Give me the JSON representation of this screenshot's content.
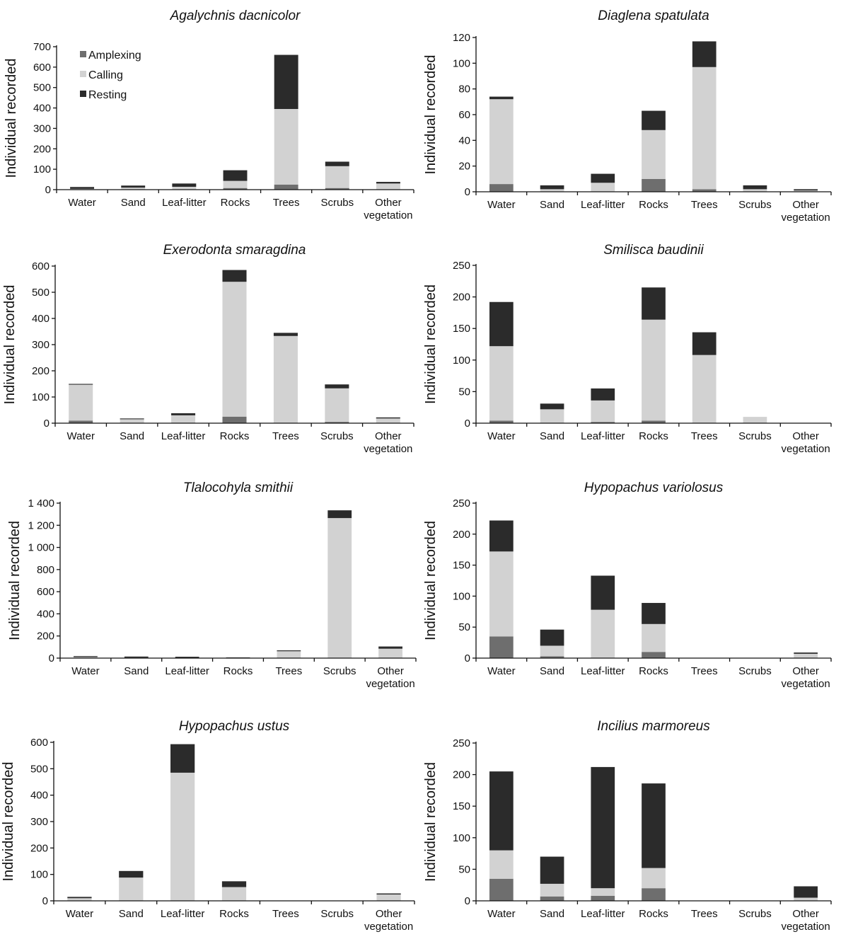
{
  "colors": {
    "amplexing": "#6e6e6e",
    "calling": "#d2d2d2",
    "resting": "#2b2b2b",
    "axis": "#111111"
  },
  "chart_data": [
    {
      "type": "bar",
      "stacked": true,
      "title": "Agalychnis dacnicolor",
      "xlabel": "",
      "ylabel": "Individual recorded",
      "ylim": [
        0,
        700
      ],
      "yticks": [
        0,
        100,
        200,
        300,
        400,
        500,
        600,
        700
      ],
      "ytick_labels": [
        "0",
        "100",
        "200",
        "300",
        "400",
        "500",
        "600",
        "700"
      ],
      "categories": [
        "Water",
        "Sand",
        "Leaf-litter",
        "Rocks",
        "Trees",
        "Scrubs",
        "Other vegetation"
      ],
      "series": [
        {
          "name": "Amplexing",
          "values": [
            1,
            1,
            2,
            8,
            25,
            8,
            2
          ]
        },
        {
          "name": "Calling",
          "values": [
            3,
            9,
            12,
            35,
            370,
            107,
            28
          ]
        },
        {
          "name": "Resting",
          "values": [
            9,
            10,
            16,
            52,
            265,
            22,
            8
          ]
        }
      ],
      "legend": {
        "position": "top-left",
        "entries": [
          "Amplexing",
          "Calling",
          "Resting"
        ]
      }
    },
    {
      "type": "bar",
      "stacked": true,
      "title": "Diaglena spatulata",
      "xlabel": "",
      "ylabel": "Individual recorded",
      "ylim": [
        0,
        120
      ],
      "yticks": [
        0,
        20,
        40,
        60,
        80,
        100,
        120
      ],
      "ytick_labels": [
        "0",
        "20",
        "40",
        "60",
        "80",
        "100",
        "120"
      ],
      "categories": [
        "Water",
        "Sand",
        "Leaf-litter",
        "Rocks",
        "Trees",
        "Scrubs",
        "Other vegetation"
      ],
      "series": [
        {
          "name": "Amplexing",
          "values": [
            6,
            0,
            0,
            10,
            2,
            0,
            0
          ]
        },
        {
          "name": "Calling",
          "values": [
            66,
            2,
            7,
            38,
            95,
            2,
            1
          ]
        },
        {
          "name": "Resting",
          "values": [
            2,
            3,
            7,
            15,
            20,
            3,
            1
          ]
        }
      ]
    },
    {
      "type": "bar",
      "stacked": true,
      "title": "Exerodonta smaragdina",
      "xlabel": "",
      "ylabel": "Individual recorded",
      "ylim": [
        0,
        600
      ],
      "yticks": [
        0,
        100,
        200,
        300,
        400,
        500,
        600
      ],
      "ytick_labels": [
        "0",
        "100",
        "200",
        "300",
        "400",
        "500",
        "600"
      ],
      "categories": [
        "Water",
        "Sand",
        "Leaf-litter",
        "Rocks",
        "Trees",
        "Scrubs",
        "Other vegetation"
      ],
      "series": [
        {
          "name": "Amplexing",
          "values": [
            10,
            1,
            2,
            25,
            1,
            5,
            1
          ]
        },
        {
          "name": "Calling",
          "values": [
            137,
            14,
            28,
            515,
            332,
            128,
            17
          ]
        },
        {
          "name": "Resting",
          "values": [
            3,
            3,
            8,
            45,
            12,
            15,
            4
          ]
        }
      ]
    },
    {
      "type": "bar",
      "stacked": true,
      "title": "Smilisca baudinii",
      "xlabel": "",
      "ylabel": "Individual recorded",
      "ylim": [
        0,
        250
      ],
      "yticks": [
        0,
        50,
        100,
        150,
        200,
        250
      ],
      "ytick_labels": [
        "0",
        "50",
        "100",
        "150",
        "200",
        "250"
      ],
      "categories": [
        "Water",
        "Sand",
        "Leaf-litter",
        "Rocks",
        "Trees",
        "Scrubs",
        "Other vegetation"
      ],
      "series": [
        {
          "name": "Amplexing",
          "values": [
            4,
            0,
            2,
            4,
            0,
            0,
            0
          ]
        },
        {
          "name": "Calling",
          "values": [
            118,
            22,
            34,
            160,
            108,
            10,
            0
          ]
        },
        {
          "name": "Resting",
          "values": [
            70,
            9,
            19,
            51,
            36,
            0,
            0
          ]
        }
      ]
    },
    {
      "type": "bar",
      "stacked": true,
      "title": "Tlalocohyla smithii",
      "xlabel": "",
      "ylabel": "Individual recorded",
      "ylim": [
        0,
        1400
      ],
      "yticks": [
        0,
        200,
        400,
        600,
        800,
        1000,
        1200,
        1400
      ],
      "ytick_labels": [
        "0",
        "200",
        "400",
        "600",
        "800",
        "1 000",
        "1 200",
        "1 400"
      ],
      "categories": [
        "Water",
        "Sand",
        "Leaf-litter",
        "Rocks",
        "Trees",
        "Scrubs",
        "Other vegetation"
      ],
      "series": [
        {
          "name": "Amplexing",
          "values": [
            0,
            0,
            0,
            0,
            0,
            0,
            0
          ]
        },
        {
          "name": "Calling",
          "values": [
            10,
            4,
            3,
            4,
            62,
            1265,
            85
          ]
        },
        {
          "name": "Resting",
          "values": [
            8,
            10,
            9,
            2,
            8,
            70,
            20
          ]
        }
      ]
    },
    {
      "type": "bar",
      "stacked": true,
      "title": "Hypopachus variolosus",
      "xlabel": "",
      "ylabel": "Individual recorded",
      "ylim": [
        0,
        250
      ],
      "yticks": [
        0,
        50,
        100,
        150,
        200,
        250
      ],
      "ytick_labels": [
        "0",
        "50",
        "100",
        "150",
        "200",
        "250"
      ],
      "categories": [
        "Water",
        "Sand",
        "Leaf-litter",
        "Rocks",
        "Trees",
        "Scrubs",
        "Other vegetation"
      ],
      "series": [
        {
          "name": "Amplexing",
          "values": [
            35,
            3,
            0,
            10,
            0,
            0,
            0
          ]
        },
        {
          "name": "Calling",
          "values": [
            137,
            17,
            78,
            45,
            0,
            0,
            7
          ]
        },
        {
          "name": "Resting",
          "values": [
            50,
            26,
            55,
            34,
            0,
            0,
            2
          ]
        }
      ]
    },
    {
      "type": "bar",
      "stacked": true,
      "title": "Hypopachus ustus",
      "xlabel": "",
      "ylabel": "Individual recorded",
      "ylim": [
        0,
        600
      ],
      "yticks": [
        0,
        100,
        200,
        300,
        400,
        500,
        600
      ],
      "ytick_labels": [
        "0",
        "100",
        "200",
        "300",
        "400",
        "500",
        "600"
      ],
      "categories": [
        "Water",
        "Sand",
        "Leaf-litter",
        "Rocks",
        "Trees",
        "Scrubs",
        "Other vegetation"
      ],
      "series": [
        {
          "name": "Amplexing",
          "values": [
            0,
            0,
            0,
            0,
            0,
            0,
            0
          ]
        },
        {
          "name": "Calling",
          "values": [
            10,
            88,
            485,
            52,
            0,
            0,
            24
          ]
        },
        {
          "name": "Resting",
          "values": [
            5,
            25,
            108,
            22,
            0,
            0,
            4
          ]
        }
      ]
    },
    {
      "type": "bar",
      "stacked": true,
      "title": "Incilius marmoreus",
      "xlabel": "",
      "ylabel": "Individual recorded",
      "ylim": [
        0,
        250
      ],
      "yticks": [
        0,
        50,
        100,
        150,
        200,
        250
      ],
      "ytick_labels": [
        "0",
        "50",
        "100",
        "150",
        "200",
        "250"
      ],
      "categories": [
        "Water",
        "Sand",
        "Leaf-litter",
        "Rocks",
        "Trees",
        "Scrubs",
        "Other vegetation"
      ],
      "series": [
        {
          "name": "Amplexing",
          "values": [
            35,
            7,
            8,
            20,
            0,
            0,
            0
          ]
        },
        {
          "name": "Calling",
          "values": [
            45,
            20,
            12,
            32,
            0,
            0,
            5
          ]
        },
        {
          "name": "Resting",
          "values": [
            125,
            43,
            192,
            134,
            0,
            0,
            18
          ]
        }
      ]
    }
  ]
}
